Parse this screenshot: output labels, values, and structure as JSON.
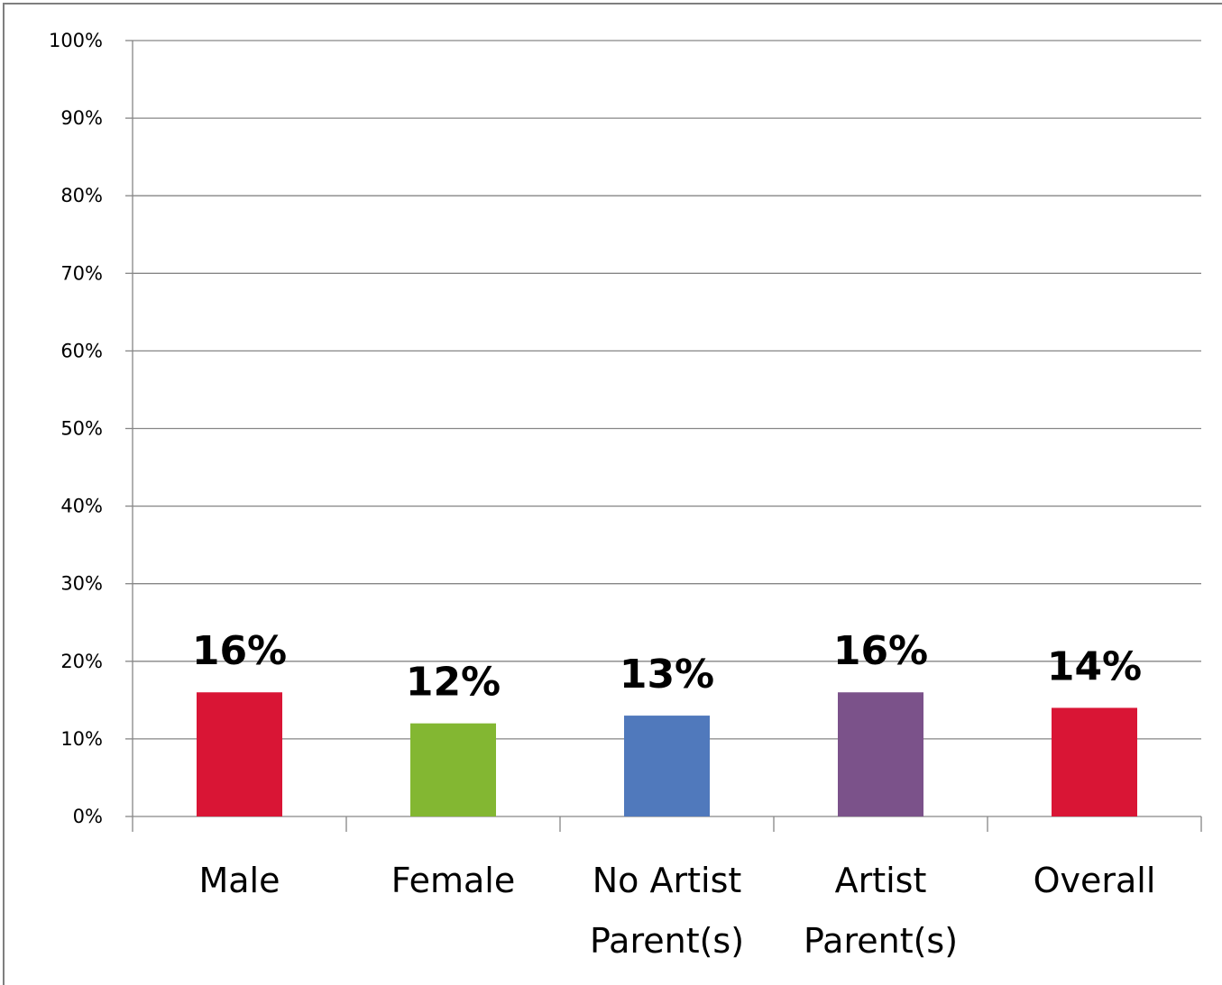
{
  "chart_data": {
    "type": "bar",
    "categories": [
      [
        "Male"
      ],
      [
        "Female"
      ],
      [
        "No Artist",
        "Parent(s)"
      ],
      [
        "Artist",
        "Parent(s)"
      ],
      [
        "Overall"
      ]
    ],
    "values": [
      16,
      12,
      13,
      16,
      14
    ],
    "data_labels": [
      "16%",
      "12%",
      "13%",
      "16%",
      "14%"
    ],
    "colors": [
      "#d91535",
      "#83b732",
      "#5079bc",
      "#7b528a",
      "#d91535"
    ],
    "ylim": [
      0,
      100
    ],
    "yticks": [
      0,
      10,
      20,
      30,
      40,
      50,
      60,
      70,
      80,
      90,
      100
    ],
    "ytick_labels": [
      "0%",
      "10%",
      "20%",
      "30%",
      "40%",
      "50%",
      "60%",
      "70%",
      "80%",
      "90%",
      "100%"
    ],
    "grid": true,
    "legend": "none"
  }
}
